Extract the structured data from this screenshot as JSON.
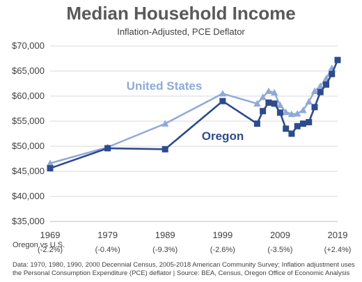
{
  "chart_data": {
    "type": "line",
    "title": "Median Household Income",
    "subtitle": "Inflation-Adjusted, PCE Deflator",
    "xlabel": "",
    "ylabel": "",
    "x_ticks": [
      "1969",
      "1979",
      "1989",
      "1999",
      "2009",
      "2019"
    ],
    "xlim": [
      1969,
      2019
    ],
    "ylim": [
      35000,
      70000
    ],
    "y_ticks": [
      "$35,000",
      "$40,000",
      "$45,000",
      "$50,000",
      "$55,000",
      "$60,000",
      "$65,000",
      "$70,000"
    ],
    "y_tick_values": [
      35000,
      40000,
      45000,
      50000,
      55000,
      60000,
      65000,
      70000
    ],
    "grid": "horizontal",
    "series": [
      {
        "name": "United States",
        "color": "#8FA9D8",
        "marker": "triangle",
        "x": [
          1969,
          1979,
          1989,
          1999,
          2005,
          2006,
          2007,
          2008,
          2009,
          2010,
          2011,
          2012,
          2013,
          2014,
          2015,
          2016,
          2017,
          2018
        ],
        "y": [
          46600,
          49800,
          54500,
          60500,
          58500,
          59800,
          61000,
          60700,
          58200,
          56800,
          56400,
          56500,
          57200,
          58900,
          61000,
          62000,
          63500,
          65600
        ]
      },
      {
        "name": "Oregon",
        "color": "#2E4B8C",
        "marker": "square",
        "x": [
          1969,
          1979,
          1989,
          1999,
          2005,
          2006,
          2007,
          2008,
          2009,
          2010,
          2011,
          2012,
          2013,
          2014,
          2015,
          2016,
          2017,
          2018,
          2019
        ],
        "y": [
          45600,
          49600,
          49400,
          59000,
          54500,
          57000,
          58700,
          58500,
          56700,
          53500,
          52500,
          54000,
          54500,
          54800,
          57800,
          60800,
          62300,
          64400,
          67200
        ]
      }
    ],
    "comparison": {
      "label": "Oregon vs U.S.",
      "values": [
        "(-2.2%)",
        "(-0.4%)",
        "(-9.3%)",
        "(-2.6%)",
        "(-3.5%)",
        "(+2.4%)"
      ]
    },
    "footnote": "Data: 1970, 1980, 1990, 2000 Decennial Census, 2005-2018 American Community Survey; Inflation adjustment uses the Personal Consumption Expenditure (PCE) deflator  |  Source: BEA, Census, Oregon Office of Economic Analysis"
  }
}
